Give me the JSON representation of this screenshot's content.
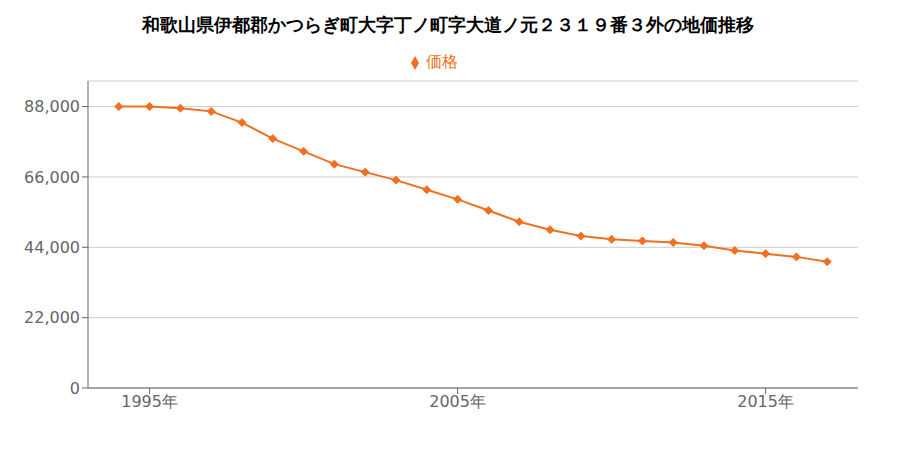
{
  "chart_data": {
    "type": "line",
    "title": "和歌山県伊都郡かつらぎ町大字丁ノ町字大道ノ元２３１９番３外の地価推移",
    "x": [
      1994,
      1995,
      1996,
      1997,
      1998,
      1999,
      2000,
      2001,
      2002,
      2003,
      2004,
      2005,
      2006,
      2007,
      2008,
      2009,
      2010,
      2011,
      2012,
      2013,
      2014,
      2015,
      2016,
      2017
    ],
    "series": [
      {
        "name": "価格",
        "color": "#f07020",
        "marker": "diamond",
        "values": [
          88000,
          88000,
          87500,
          86500,
          83000,
          78000,
          74000,
          70000,
          67500,
          65000,
          62000,
          59000,
          55500,
          52000,
          49500,
          47500,
          46500,
          46000,
          45500,
          44500,
          43000,
          42000,
          41000,
          39500
        ]
      }
    ],
    "xlim": [
      1993,
      2018
    ],
    "xticks": [
      {
        "value": 1995,
        "label": "1995年"
      },
      {
        "value": 2005,
        "label": "2005年"
      },
      {
        "value": 2015,
        "label": "2015年"
      }
    ],
    "ylim": [
      0,
      96000
    ],
    "yticks": [
      0,
      {
        "value": 22000,
        "label": "22,000"
      },
      {
        "value": 44000,
        "label": "44,000"
      },
      {
        "value": 66000,
        "label": "66,000"
      },
      {
        "value": 88000,
        "label": "88,000"
      }
    ],
    "grid": "y",
    "legend": "top"
  }
}
